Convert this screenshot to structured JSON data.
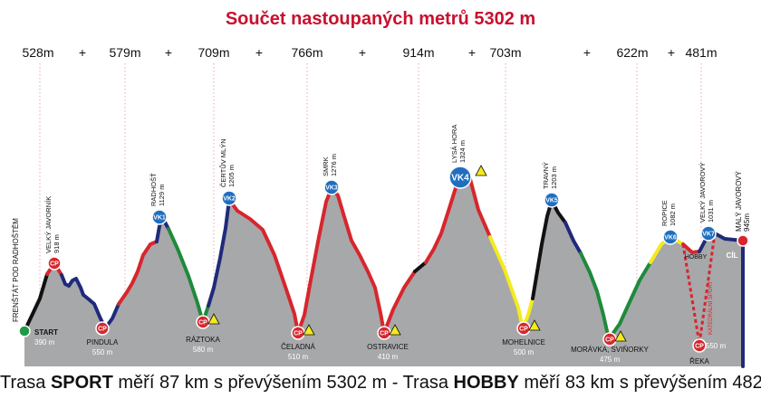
{
  "title": "Součet nastoupaných metrů 5302 m",
  "caption": {
    "p1": "Trasa ",
    "sport": "SPORT",
    "p2": " měří 87 km s převýšením 5302 m - Trasa ",
    "hobby": "HOBBY",
    "p3": " měří 83 km s převýšením 4821 m"
  },
  "colors": {
    "title": "#c8102e",
    "terrain": "#a7a8aa",
    "sport_red": "#d7262d",
    "navy": "#1f2a7a",
    "green": "#1f8a3b",
    "yellow": "#f4ea1d",
    "black": "#111111",
    "vk_blue": "#1f6fc0",
    "cp_red": "#d7262d",
    "start_green": "#1f9a48",
    "guide": "#e6a7b0",
    "hobby_dash": "#d7262d"
  },
  "chart_data": {
    "type": "area",
    "title": "Součet nastoupaných metrů 5302 m",
    "climbs": [
      "528m",
      "579m",
      "709m",
      "766m",
      "914m",
      "703m",
      "622m",
      "481m"
    ],
    "plus_sign": "+",
    "points": [
      {
        "name": "FRENŠTÁT POD RADHOŠTĚM",
        "type": "label"
      },
      {
        "name": "START",
        "elev_label": "390 m",
        "elevation": 390,
        "type": "start"
      },
      {
        "name": "VELKÝ JAVORNÍK",
        "elev_label": "918 m",
        "elevation": 918,
        "type": "cp",
        "badge": "CP"
      },
      {
        "name": "PINDULA",
        "elev_label": "550 m",
        "elevation": 550,
        "type": "cp",
        "badge": "CP"
      },
      {
        "name": "RADHOŠŤ",
        "elev_label": "1129 m",
        "elevation": 1129,
        "type": "vk",
        "badge": "VK1"
      },
      {
        "name": "RÁZTOKA",
        "elev_label": "580 m",
        "elevation": 580,
        "type": "cp",
        "badge": "CP"
      },
      {
        "name": "ČERTŮV MLÝN",
        "elev_label": "1205 m",
        "elevation": 1205,
        "type": "vk",
        "badge": "VK2"
      },
      {
        "name": "ČELADNÁ",
        "elev_label": "510 m",
        "elevation": 510,
        "type": "cp",
        "badge": "CP"
      },
      {
        "name": "SMRK",
        "elev_label": "1276 m",
        "elevation": 1276,
        "type": "vk",
        "badge": "VK3"
      },
      {
        "name": "OSTRAVICE",
        "elev_label": "410 m",
        "elevation": 410,
        "type": "cp",
        "badge": "CP"
      },
      {
        "name": "LYSÁ HORA",
        "elev_label": "1324 m",
        "elevation": 1324,
        "type": "vk",
        "badge": "VK4"
      },
      {
        "name": "MOHELNICE",
        "elev_label": "500 m",
        "elevation": 500,
        "type": "cp",
        "badge": "CP"
      },
      {
        "name": "TRAVNÝ",
        "elev_label": "1203 m",
        "elevation": 1203,
        "type": "vk",
        "badge": "VK5"
      },
      {
        "name": "MORÁVKA, SVIŇORKY",
        "elev_label": "475 m",
        "elevation": 475,
        "type": "cp",
        "badge": "CP"
      },
      {
        "name": "ROPICE",
        "elev_label": "1082 m",
        "elevation": 1082,
        "type": "vk",
        "badge": "VK6"
      },
      {
        "name": "HOBBY",
        "type": "label"
      },
      {
        "name": "VELKÝ JAVOROVÝ",
        "elev_label": "1031 m",
        "elevation": 1031,
        "type": "vk",
        "badge": "VK7"
      },
      {
        "name": "ŘEKA",
        "elev_label": "550 m",
        "elevation": 550,
        "type": "cp",
        "badge": "CP"
      },
      {
        "name": "MALÝ JAVOROVÝ",
        "elev_label": "945m",
        "elevation": 945,
        "type": "finish"
      },
      {
        "name": "CÍL",
        "type": "label"
      }
    ],
    "hobby_route_label": "HOBBY",
    "vertical_label": "KATEDRÁLNÍ SPORT"
  }
}
